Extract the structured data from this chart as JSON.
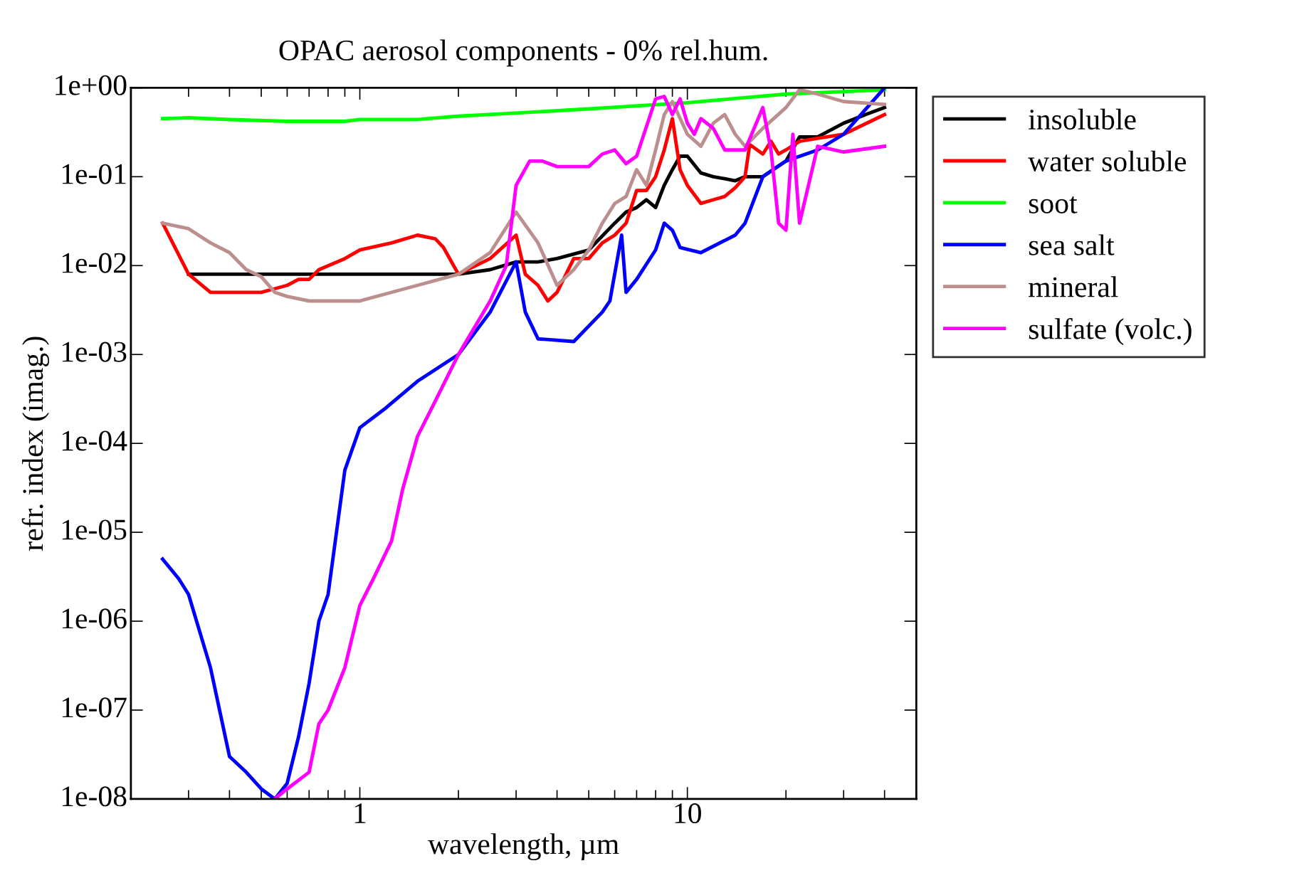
{
  "chart_data": {
    "type": "line",
    "title": "OPAC aerosol components - 0% rel.hum.",
    "xlabel": "wavelength, µm",
    "ylabel": "refr. index (imag.)",
    "log": "xy",
    "grid": false,
    "legend": "right",
    "marker": "none",
    "line_style": "solid",
    "xlim": [
      0.2,
      50
    ],
    "xticks": [
      1,
      10
    ],
    "ylim": [
      1e-08,
      1
    ],
    "yticks": [
      {
        "value": 1e-08,
        "label": "1e-08"
      },
      {
        "value": 1e-07,
        "label": "1e-07"
      },
      {
        "value": 1e-06,
        "label": "1e-06"
      },
      {
        "value": 1e-05,
        "label": "1e-05"
      },
      {
        "value": 0.0001,
        "label": "1e-04"
      },
      {
        "value": 0.001,
        "label": "1e-03"
      },
      {
        "value": 0.01,
        "label": "1e-02"
      },
      {
        "value": 0.1,
        "label": "1e-01"
      },
      {
        "value": 1,
        "label": "1e+00"
      }
    ],
    "series": [
      {
        "name": "insoluble",
        "color": "#000000",
        "x": [
          0.3,
          0.5,
          1,
          2,
          2.5,
          3,
          3.5,
          4,
          5,
          6,
          6.5,
          7,
          7.5,
          8,
          8.5,
          9,
          9.5,
          10,
          11,
          12,
          13,
          14,
          15,
          17,
          20,
          22,
          25,
          30,
          35,
          40
        ],
        "values": [
          0.008,
          0.008,
          0.008,
          0.008,
          0.009,
          0.011,
          0.011,
          0.012,
          0.015,
          0.03,
          0.04,
          0.045,
          0.055,
          0.045,
          0.08,
          0.12,
          0.17,
          0.17,
          0.11,
          0.1,
          0.095,
          0.09,
          0.1,
          0.1,
          0.15,
          0.28,
          0.28,
          0.4,
          0.5,
          0.6
        ]
      },
      {
        "name": "water soluble",
        "color": "#ff0000",
        "x": [
          0.25,
          0.3,
          0.35,
          0.45,
          0.5,
          0.55,
          0.6,
          0.65,
          0.7,
          0.75,
          0.9,
          1,
          1.25,
          1.5,
          1.7,
          1.8,
          2,
          2.5,
          3,
          3.2,
          3.5,
          3.75,
          4,
          4.5,
          5,
          5.5,
          6,
          6.5,
          7,
          7.5,
          8,
          8.5,
          9,
          9.5,
          10,
          11,
          12,
          13,
          14,
          15,
          15.5,
          17,
          18,
          19,
          20,
          22,
          25,
          30,
          40
        ],
        "values": [
          0.03,
          0.008,
          0.005,
          0.005,
          0.005,
          0.0055,
          0.006,
          0.007,
          0.007,
          0.009,
          0.012,
          0.015,
          0.018,
          0.022,
          0.02,
          0.016,
          0.008,
          0.012,
          0.022,
          0.008,
          0.006,
          0.004,
          0.005,
          0.012,
          0.012,
          0.018,
          0.022,
          0.03,
          0.07,
          0.07,
          0.1,
          0.2,
          0.45,
          0.12,
          0.08,
          0.05,
          0.055,
          0.06,
          0.075,
          0.1,
          0.23,
          0.18,
          0.25,
          0.18,
          0.2,
          0.25,
          0.27,
          0.3,
          0.5
        ]
      },
      {
        "name": "soot",
        "color": "#00ff00",
        "x": [
          0.25,
          0.3,
          0.4,
          0.6,
          0.9,
          1,
          1.5,
          2,
          3,
          5,
          10,
          20,
          40
        ],
        "values": [
          0.45,
          0.46,
          0.44,
          0.42,
          0.42,
          0.44,
          0.44,
          0.48,
          0.52,
          0.58,
          0.68,
          0.85,
          0.95
        ]
      },
      {
        "name": "sea salt",
        "color": "#0000ff",
        "x": [
          0.25,
          0.28,
          0.3,
          0.35,
          0.4,
          0.45,
          0.5,
          0.55,
          0.6,
          0.65,
          0.7,
          0.75,
          0.8,
          0.9,
          1,
          1.2,
          1.5,
          2,
          2.5,
          3,
          3.2,
          3.5,
          4.5,
          5.5,
          5.8,
          6.3,
          6.5,
          7,
          8,
          8.5,
          9,
          9.5,
          11,
          14,
          15,
          17,
          20,
          25,
          30,
          40
        ],
        "values": [
          5e-06,
          3e-06,
          2e-06,
          3e-07,
          3e-08,
          2e-08,
          1.3e-08,
          1e-08,
          1.5e-08,
          5e-08,
          2e-07,
          1e-06,
          2e-06,
          5e-05,
          0.00015,
          0.00025,
          0.0005,
          0.001,
          0.003,
          0.011,
          0.003,
          0.0015,
          0.0014,
          0.003,
          0.004,
          0.022,
          0.005,
          0.007,
          0.015,
          0.03,
          0.025,
          0.016,
          0.014,
          0.022,
          0.03,
          0.1,
          0.15,
          0.2,
          0.3,
          1.0
        ]
      },
      {
        "name": "mineral",
        "color": "#bc8f8f",
        "x": [
          0.25,
          0.3,
          0.35,
          0.4,
          0.45,
          0.5,
          0.55,
          0.6,
          0.7,
          1,
          1.5,
          2,
          2.5,
          3,
          3.5,
          4,
          4.5,
          5,
          5.5,
          6,
          6.5,
          7,
          7.5,
          8,
          8.5,
          9,
          10,
          11,
          12,
          13,
          14,
          15,
          17,
          20,
          22,
          25,
          30,
          40
        ],
        "values": [
          0.03,
          0.026,
          0.018,
          0.014,
          0.009,
          0.0075,
          0.005,
          0.0045,
          0.004,
          0.004,
          0.006,
          0.008,
          0.014,
          0.04,
          0.018,
          0.006,
          0.009,
          0.015,
          0.03,
          0.05,
          0.06,
          0.12,
          0.08,
          0.2,
          0.5,
          0.7,
          0.3,
          0.22,
          0.4,
          0.5,
          0.3,
          0.22,
          0.35,
          0.6,
          0.95,
          0.85,
          0.7,
          0.65
        ]
      },
      {
        "name": "sulfate (volc.)",
        "color": "#ff00ff",
        "x": [
          0.55,
          0.6,
          0.7,
          0.75,
          0.8,
          0.9,
          1,
          1.1,
          1.25,
          1.35,
          1.5,
          1.7,
          2,
          2.5,
          2.8,
          3,
          3.3,
          3.6,
          4,
          5,
          5.5,
          6,
          6.5,
          7,
          8,
          8.5,
          9,
          9.5,
          10,
          10.5,
          11,
          12,
          13,
          15,
          17,
          18,
          19,
          20,
          21,
          22,
          25,
          30,
          40
        ],
        "values": [
          1e-08,
          1.3e-08,
          2e-08,
          7e-08,
          1e-07,
          3e-07,
          1.5e-06,
          3e-06,
          8e-06,
          3e-05,
          0.00012,
          0.0003,
          0.001,
          0.004,
          0.01,
          0.08,
          0.15,
          0.15,
          0.13,
          0.13,
          0.18,
          0.2,
          0.14,
          0.17,
          0.75,
          0.8,
          0.5,
          0.75,
          0.4,
          0.3,
          0.45,
          0.35,
          0.2,
          0.2,
          0.6,
          0.2,
          0.03,
          0.025,
          0.3,
          0.03,
          0.22,
          0.19,
          0.22
        ]
      }
    ]
  }
}
